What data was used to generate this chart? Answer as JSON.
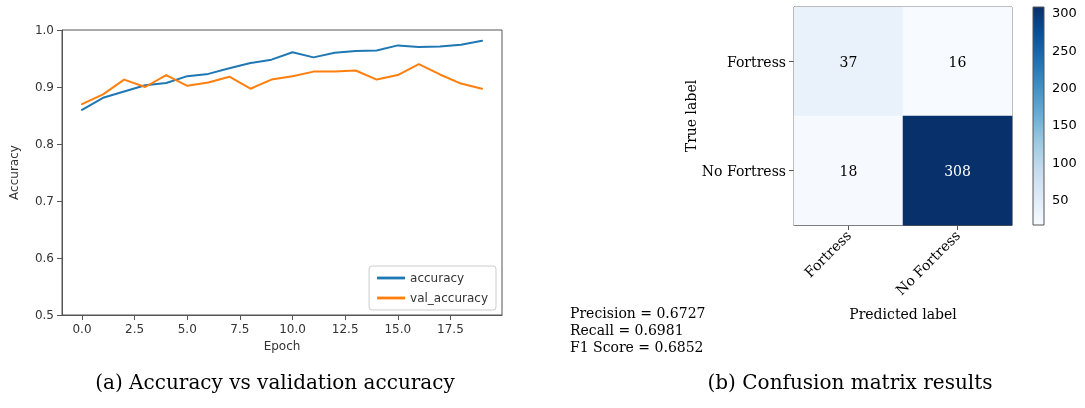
{
  "chart_data": [
    {
      "type": "line",
      "title": "(a) Accuracy vs validation accuracy",
      "xlabel": "Epoch",
      "ylabel": "Accuracy",
      "x": [
        0,
        1,
        2,
        3,
        4,
        5,
        6,
        7,
        8,
        9,
        10,
        11,
        12,
        13,
        14,
        15,
        16,
        17,
        18,
        19
      ],
      "series": [
        {
          "name": "accuracy",
          "color": "#1f77b4",
          "values": [
            0.86,
            0.881,
            0.892,
            0.903,
            0.907,
            0.919,
            0.923,
            0.933,
            0.942,
            0.948,
            0.961,
            0.952,
            0.96,
            0.963,
            0.964,
            0.973,
            0.97,
            0.971,
            0.974,
            0.981
          ]
        },
        {
          "name": "val_accuracy",
          "color": "#ff7f0e",
          "values": [
            0.87,
            0.887,
            0.913,
            0.9,
            0.921,
            0.902,
            0.908,
            0.918,
            0.897,
            0.913,
            0.919,
            0.927,
            0.927,
            0.929,
            0.913,
            0.921,
            0.94,
            0.922,
            0.906,
            0.897
          ]
        }
      ],
      "xlim": [
        -0.95,
        19.95
      ],
      "xticks": [
        {
          "value": 0,
          "label": "0.0"
        },
        {
          "value": 2.5,
          "label": "2.5"
        },
        {
          "value": 5,
          "label": "5.0"
        },
        {
          "value": 7.5,
          "label": "7.5"
        },
        {
          "value": 10,
          "label": "10.0"
        },
        {
          "value": 12.5,
          "label": "12.5"
        },
        {
          "value": 15,
          "label": "15.0"
        },
        {
          "value": 17.5,
          "label": "17.5"
        }
      ],
      "ylim": [
        0.5,
        1.0
      ],
      "yticks": [
        0.5,
        0.6,
        0.7,
        0.8,
        0.9,
        {
          "value": 1.0,
          "label": "1.0"
        }
      ],
      "legend": "bottom right",
      "grid": false,
      "marker": "none",
      "line_style": "solid"
    },
    {
      "type": "heatmap",
      "title": "(b) Confusion matrix results",
      "xlabel": "Predicted label",
      "ylabel": "True label",
      "categories": [
        "Fortress",
        "No Fortress"
      ],
      "y_categories": [
        "Fortress",
        "No Fortress"
      ],
      "cells": [
        [
          37,
          16
        ],
        [
          18,
          308
        ]
      ],
      "data_labels": true,
      "clim": [
        16,
        308
      ],
      "cticks": [
        50,
        100,
        150,
        200,
        250,
        300
      ],
      "annotations": [
        "Precision = 0.6727",
        "Recall = 0.6981",
        "F1 Score = 0.6852"
      ]
    }
  ]
}
